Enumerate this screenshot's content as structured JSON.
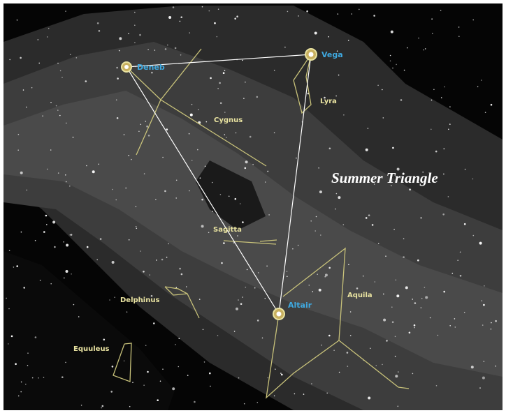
{
  "title": "Summer Triangle",
  "stars": [
    {
      "label": "Deneb"
    },
    {
      "label": "Vega"
    },
    {
      "label": "Altair"
    }
  ],
  "constellations": [
    {
      "label": "Cygnus"
    },
    {
      "label": "Lyra"
    },
    {
      "label": "Sagitta"
    },
    {
      "label": "Aquila"
    },
    {
      "label": "Delphinus"
    },
    {
      "label": "Equuleus"
    }
  ]
}
